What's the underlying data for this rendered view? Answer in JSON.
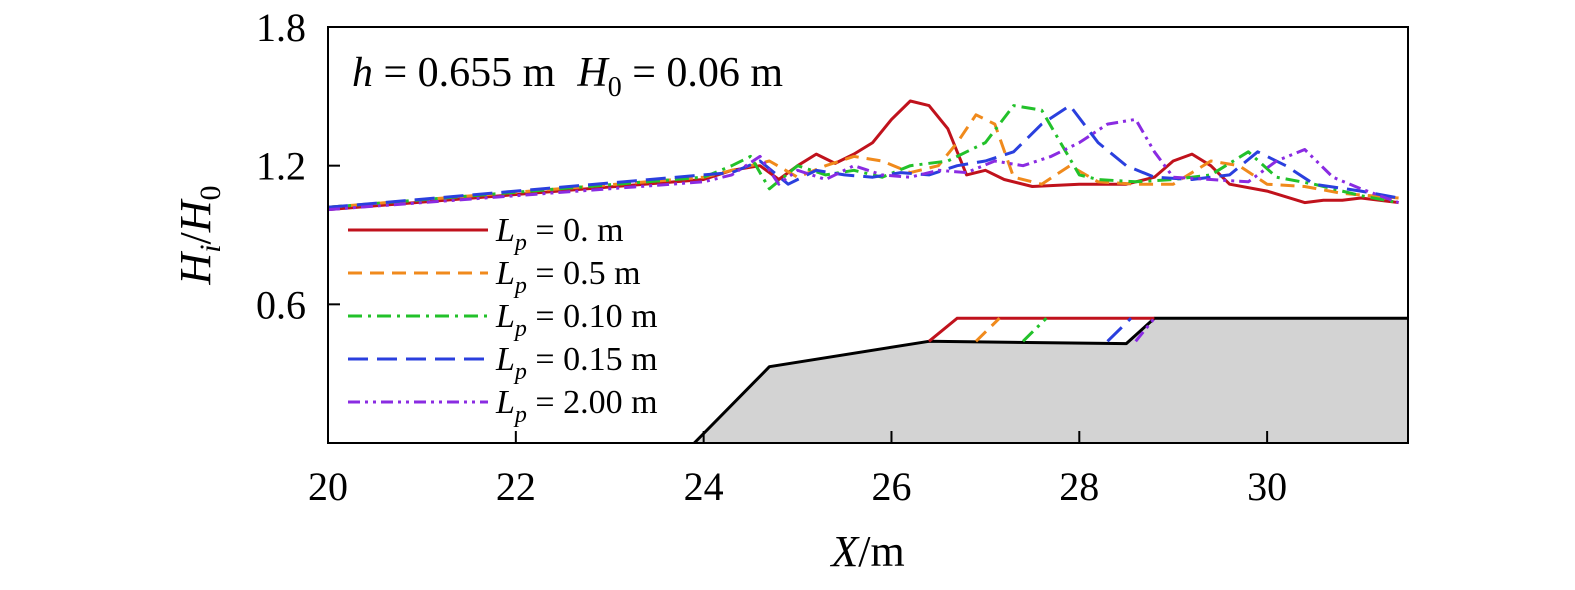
{
  "chart_data": {
    "type": "line",
    "title": "",
    "annotation": {
      "h_var": "h",
      "h_text": " = 0.655 m",
      "H_var": "H",
      "H_sub": "0",
      "H_text": " = 0.06 m"
    },
    "xlabel": {
      "var": "X",
      "unit": "/m"
    },
    "ylabel": {
      "var1": "H",
      "sub1": "i",
      "slash": "/",
      "var2": "H",
      "sub2": "0"
    },
    "xlim": [
      20,
      31.5
    ],
    "ylim": [
      0.0,
      1.8
    ],
    "xticks": [
      {
        "value": 20,
        "label": "20"
      },
      {
        "value": 22,
        "label": "22"
      },
      {
        "value": 24,
        "label": "24"
      },
      {
        "value": 26,
        "label": "26"
      },
      {
        "value": 28,
        "label": "28"
      },
      {
        "value": 30,
        "label": "30"
      }
    ],
    "yticks": [
      {
        "value": 0.6,
        "label": "0.6"
      },
      {
        "value": 1.2,
        "label": "1.2"
      },
      {
        "value": 1.8,
        "label": "1.8"
      }
    ],
    "grid": false,
    "legend_position": "left",
    "series": [
      {
        "name": "Lp = 0. m",
        "legend": {
          "var": "L",
          "sub": "p",
          "text": " = 0. m"
        },
        "color": "#c0121c",
        "dash": "none",
        "x": [
          20,
          24,
          24.3,
          24.6,
          24.8,
          25.0,
          25.2,
          25.4,
          25.6,
          25.8,
          26.0,
          26.2,
          26.4,
          26.6,
          26.8,
          27.0,
          27.2,
          27.5,
          28.0,
          28.5,
          28.8,
          29.0,
          29.2,
          29.4,
          29.6,
          30.0,
          30.4,
          30.6,
          30.8,
          31.0,
          31.4
        ],
        "y": [
          1.01,
          1.14,
          1.18,
          1.2,
          1.14,
          1.2,
          1.25,
          1.21,
          1.25,
          1.3,
          1.4,
          1.48,
          1.46,
          1.36,
          1.16,
          1.18,
          1.14,
          1.11,
          1.12,
          1.12,
          1.15,
          1.22,
          1.25,
          1.2,
          1.12,
          1.09,
          1.04,
          1.05,
          1.05,
          1.06,
          1.04
        ]
      },
      {
        "name": "Lp = 0.5 m",
        "legend": {
          "var": "L",
          "sub": "p",
          "text": " = 0.5 m"
        },
        "color": "#f08a1c",
        "dash": "14,8",
        "x": [
          20,
          24,
          24.4,
          24.7,
          25.0,
          25.3,
          25.6,
          25.9,
          26.2,
          26.5,
          26.7,
          26.9,
          27.1,
          27.3,
          27.6,
          27.9,
          28.2,
          28.6,
          29.0,
          29.4,
          29.7,
          30.0,
          30.4,
          30.8,
          31.4
        ],
        "y": [
          1.02,
          1.15,
          1.19,
          1.22,
          1.15,
          1.2,
          1.24,
          1.22,
          1.17,
          1.2,
          1.3,
          1.42,
          1.38,
          1.15,
          1.12,
          1.2,
          1.13,
          1.12,
          1.12,
          1.22,
          1.2,
          1.12,
          1.11,
          1.08,
          1.06
        ]
      },
      {
        "name": "Lp = 0.10 m",
        "legend": {
          "var": "L",
          "sub": "p",
          "text": " = 0.10 m"
        },
        "color": "#22c12a",
        "dash": "14,6,3,6",
        "x": [
          20,
          24,
          24.3,
          24.5,
          24.7,
          25.0,
          25.3,
          25.6,
          25.9,
          26.2,
          26.6,
          27.0,
          27.3,
          27.6,
          27.8,
          28.0,
          28.2,
          28.6,
          29.0,
          29.4,
          29.8,
          30.1,
          30.5,
          31.0,
          31.4
        ],
        "y": [
          1.02,
          1.15,
          1.2,
          1.24,
          1.1,
          1.2,
          1.16,
          1.18,
          1.15,
          1.2,
          1.22,
          1.3,
          1.46,
          1.44,
          1.3,
          1.16,
          1.14,
          1.13,
          1.14,
          1.16,
          1.26,
          1.15,
          1.12,
          1.07,
          1.04
        ]
      },
      {
        "name": "Lp = 0.15 m",
        "legend": {
          "var": "L",
          "sub": "p",
          "text": " = 0.15 m"
        },
        "color": "#2a3fde",
        "dash": "20,9",
        "x": [
          20,
          24,
          24.3,
          24.6,
          24.9,
          25.2,
          25.5,
          25.8,
          26.1,
          26.4,
          26.7,
          27.0,
          27.3,
          27.6,
          27.9,
          28.2,
          28.5,
          28.8,
          29.2,
          29.6,
          29.9,
          30.2,
          30.5,
          31.0,
          31.4
        ],
        "y": [
          1.02,
          1.16,
          1.17,
          1.22,
          1.12,
          1.18,
          1.16,
          1.15,
          1.17,
          1.16,
          1.2,
          1.22,
          1.26,
          1.38,
          1.46,
          1.3,
          1.2,
          1.15,
          1.14,
          1.16,
          1.26,
          1.2,
          1.12,
          1.09,
          1.06
        ]
      },
      {
        "name": "Lp = 2.00 m",
        "legend": {
          "var": "L",
          "sub": "p",
          "text": " = 2.00 m"
        },
        "color": "#8a2be2",
        "dash": "12,5,3,5,3,5",
        "x": [
          20,
          24,
          24.3,
          24.6,
          24.8,
          25.0,
          25.3,
          25.6,
          25.9,
          26.2,
          26.5,
          26.8,
          27.1,
          27.4,
          27.7,
          28.0,
          28.3,
          28.6,
          28.8,
          29.0,
          29.4,
          29.8,
          30.1,
          30.4,
          30.7,
          31.0,
          31.4
        ],
        "y": [
          1.01,
          1.13,
          1.16,
          1.24,
          1.12,
          1.18,
          1.14,
          1.2,
          1.16,
          1.15,
          1.18,
          1.17,
          1.22,
          1.2,
          1.24,
          1.3,
          1.38,
          1.4,
          1.26,
          1.15,
          1.14,
          1.13,
          1.22,
          1.27,
          1.15,
          1.1,
          1.04
        ]
      }
    ],
    "structure": {
      "fill": "#d3d3d3",
      "outline_x": [
        23.9,
        24.7,
        26.4,
        28.5,
        28.8,
        31.5
      ],
      "outline_y": [
        0.0,
        0.33,
        0.44,
        0.43,
        0.54,
        0.54
      ],
      "platform_markers": [
        {
          "x": [
            26.4,
            26.7,
            28.8
          ],
          "y": [
            0.44,
            0.54,
            0.54
          ],
          "color": "#c0121c",
          "dash": "none"
        },
        {
          "x": [
            26.9,
            27.15
          ],
          "y": [
            0.44,
            0.54
          ],
          "color": "#f08a1c",
          "dash": "14,8"
        },
        {
          "x": [
            27.4,
            27.65
          ],
          "y": [
            0.44,
            0.54
          ],
          "color": "#22c12a",
          "dash": "14,6,3,6"
        },
        {
          "x": [
            28.3,
            28.55
          ],
          "y": [
            0.44,
            0.54
          ],
          "color": "#2a3fde",
          "dash": "20,9"
        },
        {
          "x": [
            28.6,
            28.8
          ],
          "y": [
            0.44,
            0.54
          ],
          "color": "#8a2be2",
          "dash": "12,5,3,5,3,5"
        }
      ]
    }
  }
}
